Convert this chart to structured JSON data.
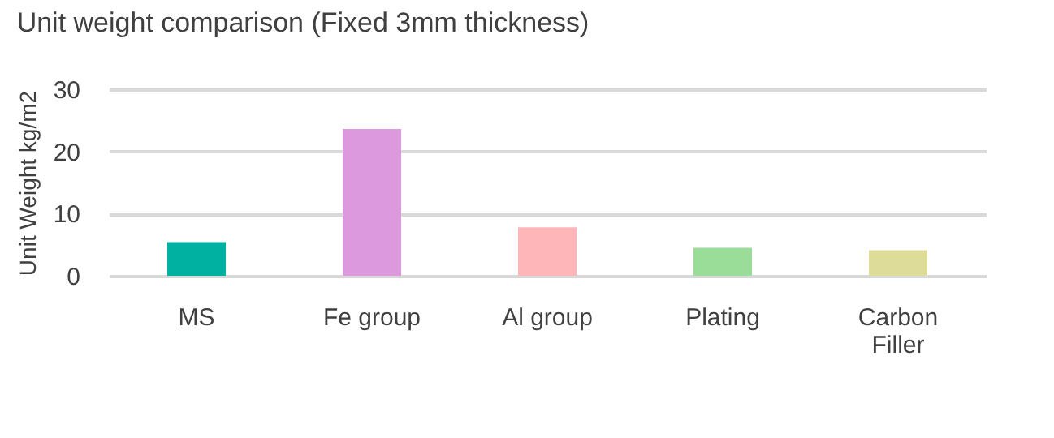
{
  "chart_data": {
    "type": "bar",
    "title": "Unit weight comparison (Fixed 3mm thickness)",
    "ylabel": "Unit Weight      kg/m2",
    "categories": [
      "MS",
      "Fe group",
      "Al group",
      "Plating",
      "Carbon Filler"
    ],
    "values": [
      5.4,
      23.6,
      7.8,
      4.5,
      4.1
    ],
    "colors": [
      "#00b0a0",
      "#dd99dd",
      "#ffb6b9",
      "#99dd99",
      "#dddd99"
    ],
    "ylim": [
      0,
      30
    ],
    "yticks": [
      0,
      10,
      20,
      30
    ],
    "grid": "y",
    "legend": false
  }
}
